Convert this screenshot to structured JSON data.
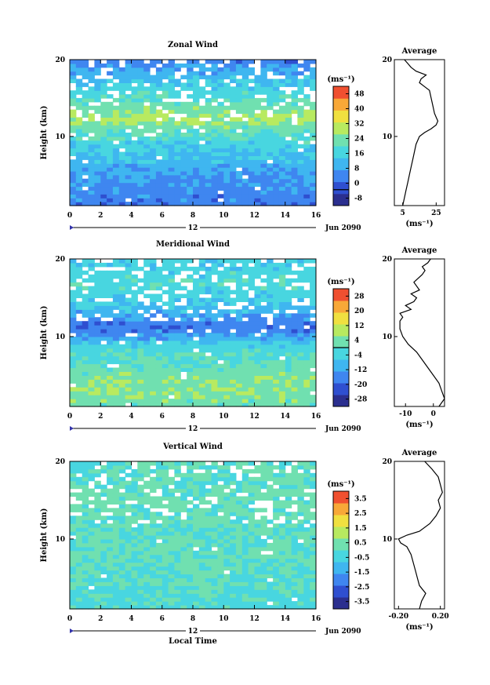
{
  "chart_data": [
    {
      "type": "heatmap",
      "title": "Zonal Wind",
      "ylabel": "Height (km)",
      "xlabel": "",
      "xlim": [
        0,
        16
      ],
      "ylim": [
        1,
        20
      ],
      "x_ticks": [
        "0",
        "2",
        "4",
        "6",
        "8",
        "10",
        "12",
        "14",
        "16"
      ],
      "y_ticks": [
        "10",
        "20"
      ],
      "date_marker": "12",
      "date_label": "Jun 2090",
      "colorbar": {
        "unit": "(ms⁻¹)",
        "ticks": [
          "48",
          "40",
          "32",
          "24",
          "16",
          "8",
          "0",
          "-8"
        ],
        "range": [
          -8,
          52
        ],
        "contour_level": 0
      },
      "field_profile": {
        "heights": [
          1,
          3,
          5,
          7,
          9,
          11,
          12,
          13,
          15,
          17,
          19,
          20
        ],
        "values": [
          6,
          8,
          10,
          14,
          18,
          24,
          30,
          28,
          22,
          16,
          10,
          6
        ]
      },
      "average": {
        "title": "Average",
        "xlabel": "(ms⁻¹)",
        "x_ticks": [
          "5",
          "25"
        ],
        "xlim": [
          0,
          30
        ],
        "y_ticks": [
          "10",
          "20"
        ],
        "heights": [
          1,
          2,
          3,
          4,
          5,
          6,
          7,
          8,
          9,
          10,
          10.5,
          11,
          11.5,
          12,
          12.5,
          13,
          14,
          15,
          16,
          16.5,
          17,
          17.5,
          18,
          18.5,
          19,
          19.5,
          20
        ],
        "values": [
          5,
          6,
          7,
          8,
          9,
          10,
          11,
          12,
          13,
          15,
          18,
          22,
          25,
          26,
          25,
          24,
          23,
          22,
          21,
          18,
          15,
          16,
          19,
          13,
          10,
          8,
          6
        ]
      }
    },
    {
      "type": "heatmap",
      "title": "Meridional Wind",
      "ylabel": "Height (km)",
      "xlabel": "",
      "xlim": [
        0,
        16
      ],
      "ylim": [
        1,
        20
      ],
      "x_ticks": [
        "0",
        "2",
        "4",
        "6",
        "8",
        "10",
        "12",
        "14",
        "16"
      ],
      "y_ticks": [
        "10",
        "20"
      ],
      "date_marker": "12",
      "date_label": "Jun 2090",
      "colorbar": {
        "unit": "(ms⁻¹)",
        "ticks": [
          "28",
          "20",
          "12",
          "4",
          "-4",
          "-12",
          "-20",
          "-28"
        ],
        "range": [
          -32,
          32
        ],
        "contour_level": 0
      },
      "field_profile": {
        "heights": [
          1,
          3,
          5,
          7,
          9,
          10,
          11,
          12,
          13,
          15,
          17,
          19,
          20
        ],
        "values": [
          2,
          6,
          4,
          0,
          -4,
          -12,
          -18,
          -16,
          -10,
          -4,
          -2,
          -4,
          -6
        ]
      },
      "average": {
        "title": "Average",
        "xlabel": "(ms⁻¹)",
        "x_ticks": [
          "-10",
          "0"
        ],
        "xlim": [
          -14,
          4
        ],
        "y_ticks": [
          "10",
          "20"
        ],
        "heights": [
          1,
          1.5,
          2,
          3,
          4,
          5,
          6,
          7,
          8,
          9,
          10,
          11,
          12,
          12.5,
          13,
          13.5,
          14,
          14.5,
          15,
          15.5,
          16,
          17,
          18,
          18.5,
          19,
          19.5,
          20
        ],
        "values": [
          2,
          3,
          4,
          3,
          2,
          0,
          -2,
          -4,
          -6,
          -9,
          -11,
          -12,
          -12,
          -11,
          -12,
          -8,
          -10,
          -7,
          -6,
          -8,
          -5,
          -7,
          -4,
          -3,
          -4,
          -2,
          -1
        ]
      }
    },
    {
      "type": "heatmap",
      "title": "Vertical Wind",
      "ylabel": "Height (km)",
      "xlabel": "Local Time",
      "xlim": [
        0,
        16
      ],
      "ylim": [
        1,
        20
      ],
      "x_ticks": [
        "0",
        "2",
        "4",
        "6",
        "8",
        "10",
        "12",
        "14",
        "16"
      ],
      "y_ticks": [
        "10",
        "20"
      ],
      "date_marker": "12",
      "date_label": "Jun 2090",
      "colorbar": {
        "unit": "(ms⁻¹)",
        "ticks": [
          "3.5",
          "2.5",
          "1.5",
          "0.5",
          "-0.5",
          "-1.5",
          "-2.5",
          "-3.5"
        ],
        "range": [
          -4,
          4
        ]
      },
      "field_profile": {
        "heights": [
          1,
          5,
          10,
          15,
          20
        ],
        "values": [
          -0.3,
          0,
          0.1,
          0.2,
          0
        ]
      },
      "average": {
        "title": "Average",
        "xlabel": "(ms⁻¹)",
        "x_ticks": [
          "-0.20",
          "0.20"
        ],
        "xlim": [
          -0.24,
          0.24
        ],
        "y_ticks": [
          "10",
          "20"
        ],
        "heights": [
          1,
          2,
          3,
          4,
          5,
          6,
          7,
          8,
          9,
          9.5,
          10,
          10.5,
          11,
          12,
          13,
          14,
          15,
          16,
          17,
          18,
          19,
          20
        ],
        "values": [
          0.0,
          0.02,
          0.06,
          0.0,
          -0.02,
          -0.04,
          -0.06,
          -0.08,
          -0.12,
          -0.18,
          -0.2,
          -0.12,
          0.0,
          0.1,
          0.16,
          0.2,
          0.18,
          0.22,
          0.2,
          0.18,
          0.12,
          0.05
        ]
      }
    }
  ]
}
